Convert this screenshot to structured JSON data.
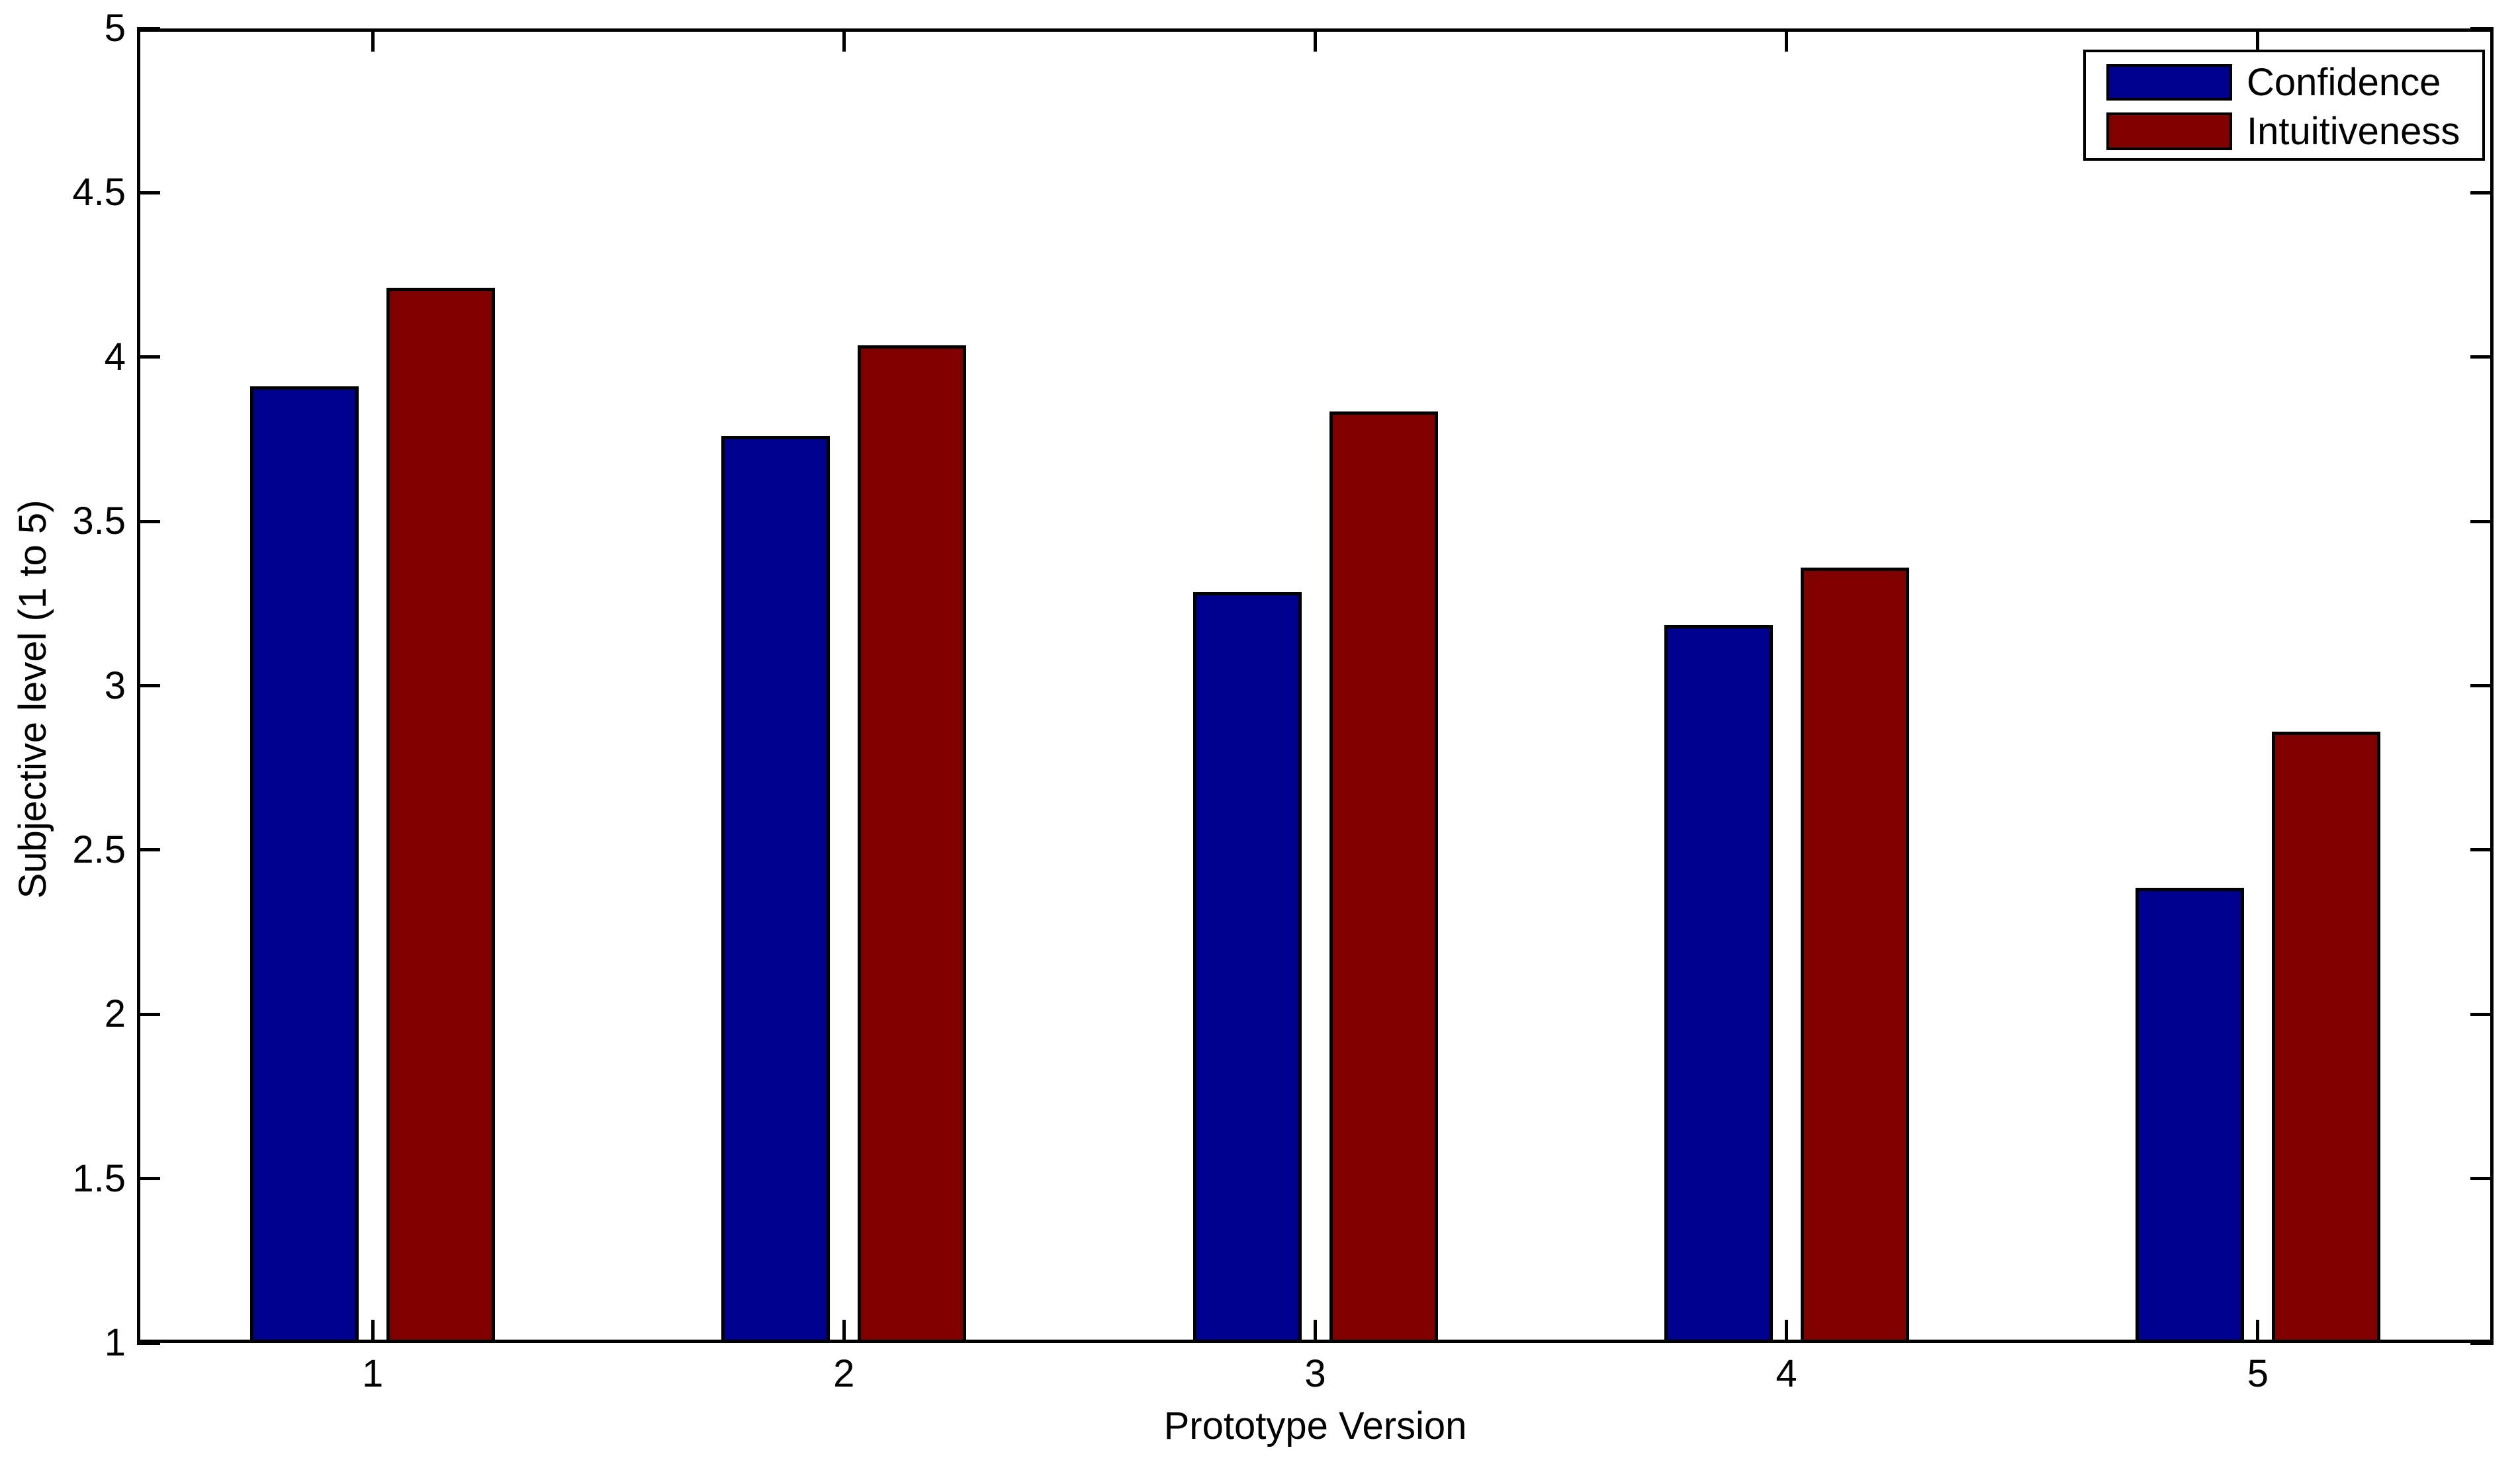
{
  "figure": {
    "background": "#ffffff",
    "axes_color": "#000000",
    "bar_edge_color": "#000000"
  },
  "chart_data": {
    "type": "bar",
    "title": "",
    "xlabel": "Prototype Version",
    "ylabel": "Subjective level (1 to 5)",
    "categories": [
      "1",
      "2",
      "3",
      "4",
      "5"
    ],
    "series": [
      {
        "name": "Confidence",
        "color": "#00008F",
        "values": [
          3.9,
          3.75,
          3.275,
          3.175,
          2.375
        ]
      },
      {
        "name": "Intuitiveness",
        "color": "#800000",
        "values": [
          4.2,
          4.025,
          3.825,
          3.35,
          2.85
        ]
      }
    ],
    "ylim": [
      1,
      5
    ],
    "yticks": [
      1,
      1.5,
      2,
      2.5,
      3,
      3.5,
      4,
      4.5,
      5
    ],
    "ytick_labels": [
      "1",
      "1.5",
      "2",
      "2.5",
      "3",
      "3.5",
      "4",
      "4.5",
      "5"
    ],
    "bar_baseline": 1,
    "grid": false,
    "legend_position": "top-right"
  }
}
